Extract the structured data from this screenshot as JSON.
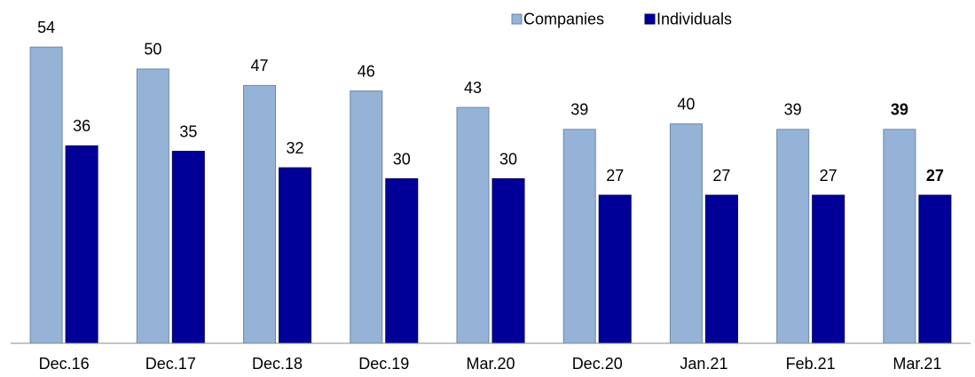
{
  "chart_data": {
    "type": "bar",
    "categories": [
      "Dec.16",
      "Dec.17",
      "Dec.18",
      "Dec.19",
      "Mar.20",
      "Dec.20",
      "Jan.21",
      "Feb.21",
      "Mar.21"
    ],
    "series": [
      {
        "name": "Companies",
        "color": "#95b3d7",
        "values": [
          54,
          50,
          47,
          46,
          43,
          39,
          40,
          39,
          39
        ]
      },
      {
        "name": "Individuals",
        "color": "#000099",
        "values": [
          36,
          35,
          32,
          30,
          30,
          27,
          27,
          27,
          27
        ]
      }
    ],
    "ylim": [
      0,
      60
    ],
    "grid": false,
    "legend": "top"
  }
}
